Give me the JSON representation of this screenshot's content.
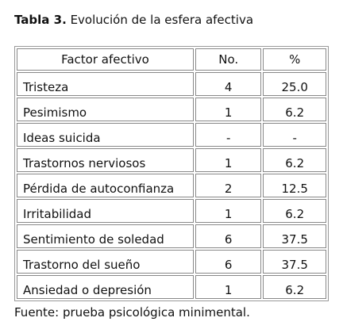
{
  "title": {
    "label": "Tabla 3.",
    "text": "Evolución de la esfera afectiva"
  },
  "table": {
    "header": [
      "Factor afectivo",
      "No.",
      "%"
    ],
    "rows": [
      [
        "Tristeza",
        "4",
        "25.0"
      ],
      [
        "Pesimismo",
        "1",
        "6.2"
      ],
      [
        "Ideas suicida",
        "-",
        "-"
      ],
      [
        "Trastornos nerviosos",
        "1",
        "6.2"
      ],
      [
        "Pérdida de autoconfianza",
        "2",
        "12.5"
      ],
      [
        "Irritabilidad",
        "1",
        "6.2"
      ],
      [
        "Sentimiento de soledad",
        "6",
        "37.5"
      ],
      [
        "Trastorno del sueño",
        "6",
        "37.5"
      ],
      [
        "Ansiedad o depresión",
        "1",
        "6.2"
      ]
    ]
  },
  "footer": "Fuente: prueba psicológica minimental."
}
